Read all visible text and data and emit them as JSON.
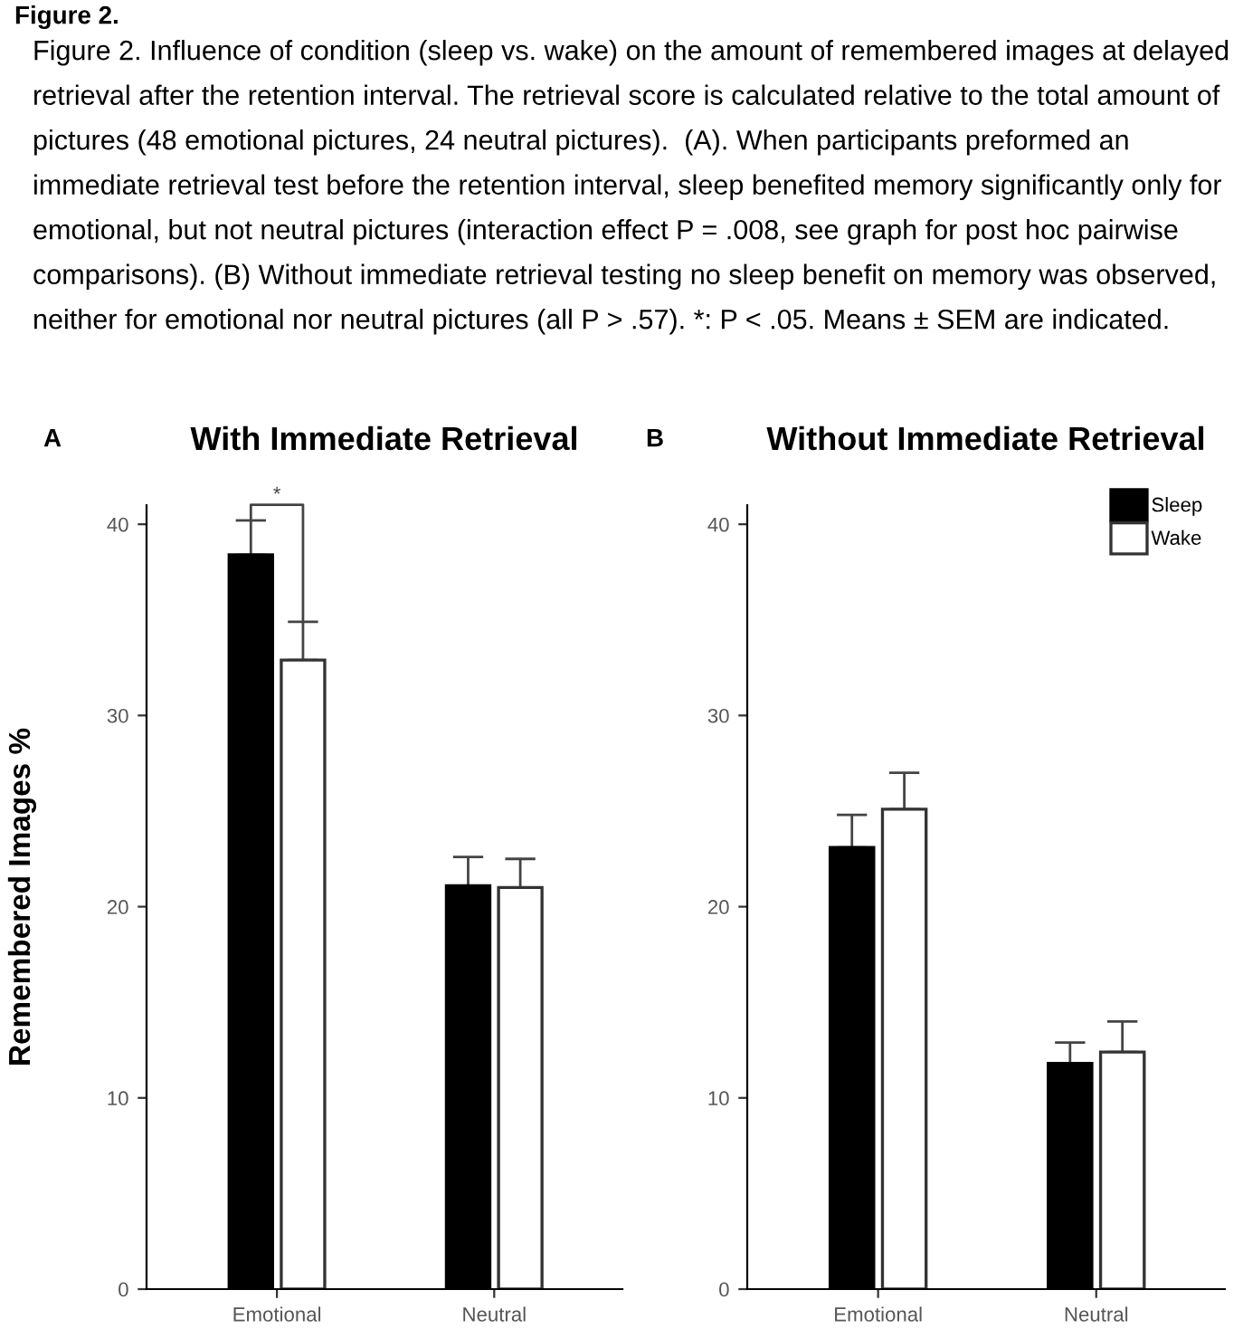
{
  "chart_data": [
    {
      "type": "bar",
      "title": "With Immediate Retrieval",
      "ylabel": "Remembered Images %",
      "categories": [
        "Emotional",
        "Neutral"
      ],
      "series": [
        {
          "color": "#000000",
          "values": [
            38.4,
            21.1
          ],
          "errors": [
            [
              38.4,
              40.2
            ],
            [
              21.1,
              22.6
            ]
          ]
        },
        {
          "color": "#ffffff",
          "values": [
            32.9,
            21.0
          ],
          "errors": [
            [
              32.9,
              34.9
            ],
            [
              21.0,
              22.5
            ]
          ]
        }
      ],
      "ylim": [
        0,
        41
      ],
      "yticks": [
        0,
        10,
        20,
        30,
        40
      ],
      "grid": false,
      "annotations": [
        "Figure 2.",
        "Figure 2. Influence of condition (sleep vs. wake) on the amount of remembered images at delayed retrieval after the retention interval. The retrieval score is calculated relative to the total amount of pictures (48 emotional pictures, 24 neutral pictures).  (A). When participants preformed an immediate retrieval test before the retention interval, sleep benefited memory significantly only for emotional, but not neutral pictures (interaction effect P = .008, see graph for post hoc pairwise comparisons). (B) Without immediate retrieval testing no sleep benefit on memory was observed, neither for emotional nor neutral pictures (all P > .57). *: P < .05. Means ± SEM are indicated.",
        "A",
        "*"
      ]
    },
    {
      "type": "bar",
      "title": "Without Immediate Retrieval",
      "categories": [
        "Emotional",
        "Neutral"
      ],
      "series": [
        {
          "name": "Sleep",
          "color": "#000000",
          "values": [
            23.1,
            11.8
          ],
          "errors": [
            [
              23.1,
              24.8
            ],
            [
              11.8,
              12.9
            ]
          ]
        },
        {
          "name": "Wake",
          "color": "#ffffff",
          "values": [
            25.1,
            12.4
          ],
          "errors": [
            [
              25.1,
              27.0
            ],
            [
              12.4,
              14.0
            ]
          ]
        }
      ],
      "ylim": [
        0,
        41
      ],
      "yticks": [
        0,
        10,
        20,
        30,
        40
      ],
      "grid": false,
      "legend": "top right",
      "annotations": [
        "B"
      ]
    }
  ]
}
